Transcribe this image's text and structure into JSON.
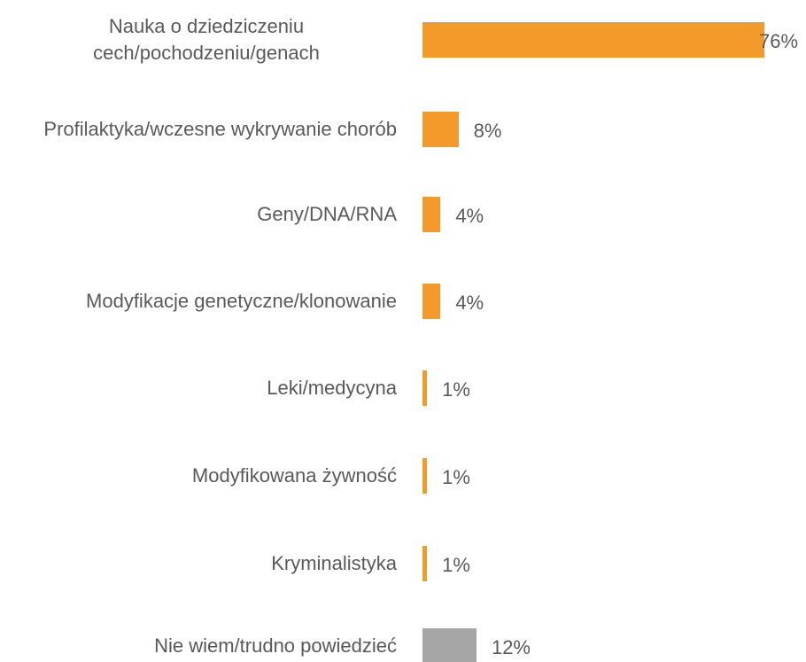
{
  "chart_data": {
    "type": "bar",
    "orientation": "horizontal",
    "categories": [
      "Nauka o dziedziczeniu cech/pochodzeniu/genach",
      "Profilaktyka/wczesne wykrywanie chorób",
      "Geny/DNA/RNA",
      "Modyfikacje genetyczne/klonowanie",
      "Leki/medycyna",
      "Modyfikowana żywność",
      "Kryminalistyka",
      "Nie wiem/trudno powiedzieć"
    ],
    "values": [
      76,
      8,
      4,
      4,
      1,
      1,
      1,
      12
    ],
    "value_labels": [
      "76%",
      "8%",
      "4%",
      "4%",
      "1%",
      "1%",
      "1%",
      "12%"
    ],
    "colors": [
      "#f39a2b",
      "#f39a2b",
      "#f39a2b",
      "#f39a2b",
      "#f39a2b",
      "#f39a2b",
      "#f39a2b",
      "#a6a6a6"
    ]
  }
}
